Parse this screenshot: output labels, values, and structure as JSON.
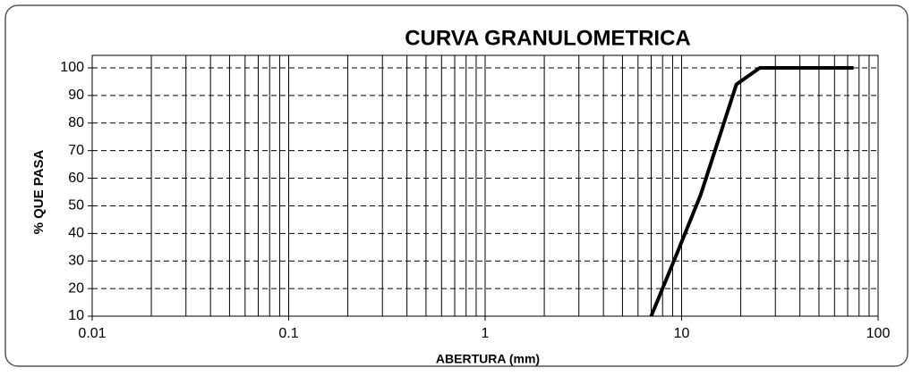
{
  "chart_data": {
    "type": "line",
    "title": "CURVA GRANULOMETRICA",
    "x_label": "ABERTURA (mm)",
    "y_label": "% QUE PASA",
    "xscale": "log",
    "xminor_grid": true,
    "grid": true,
    "xlim": [
      0.01,
      100
    ],
    "xticks": [
      0.01,
      0.1,
      1,
      10,
      100
    ],
    "ylim": [
      10,
      100
    ],
    "yticks": [
      10,
      20,
      30,
      40,
      50,
      60,
      70,
      80,
      90,
      100
    ],
    "series": [
      {
        "color": "#000000",
        "x": [
          7.0,
          9.5,
          12.5,
          19.0,
          25.0,
          37.5,
          50,
          75
        ],
        "values": [
          10,
          33,
          54,
          94,
          100,
          100,
          100,
          100
        ]
      }
    ]
  }
}
